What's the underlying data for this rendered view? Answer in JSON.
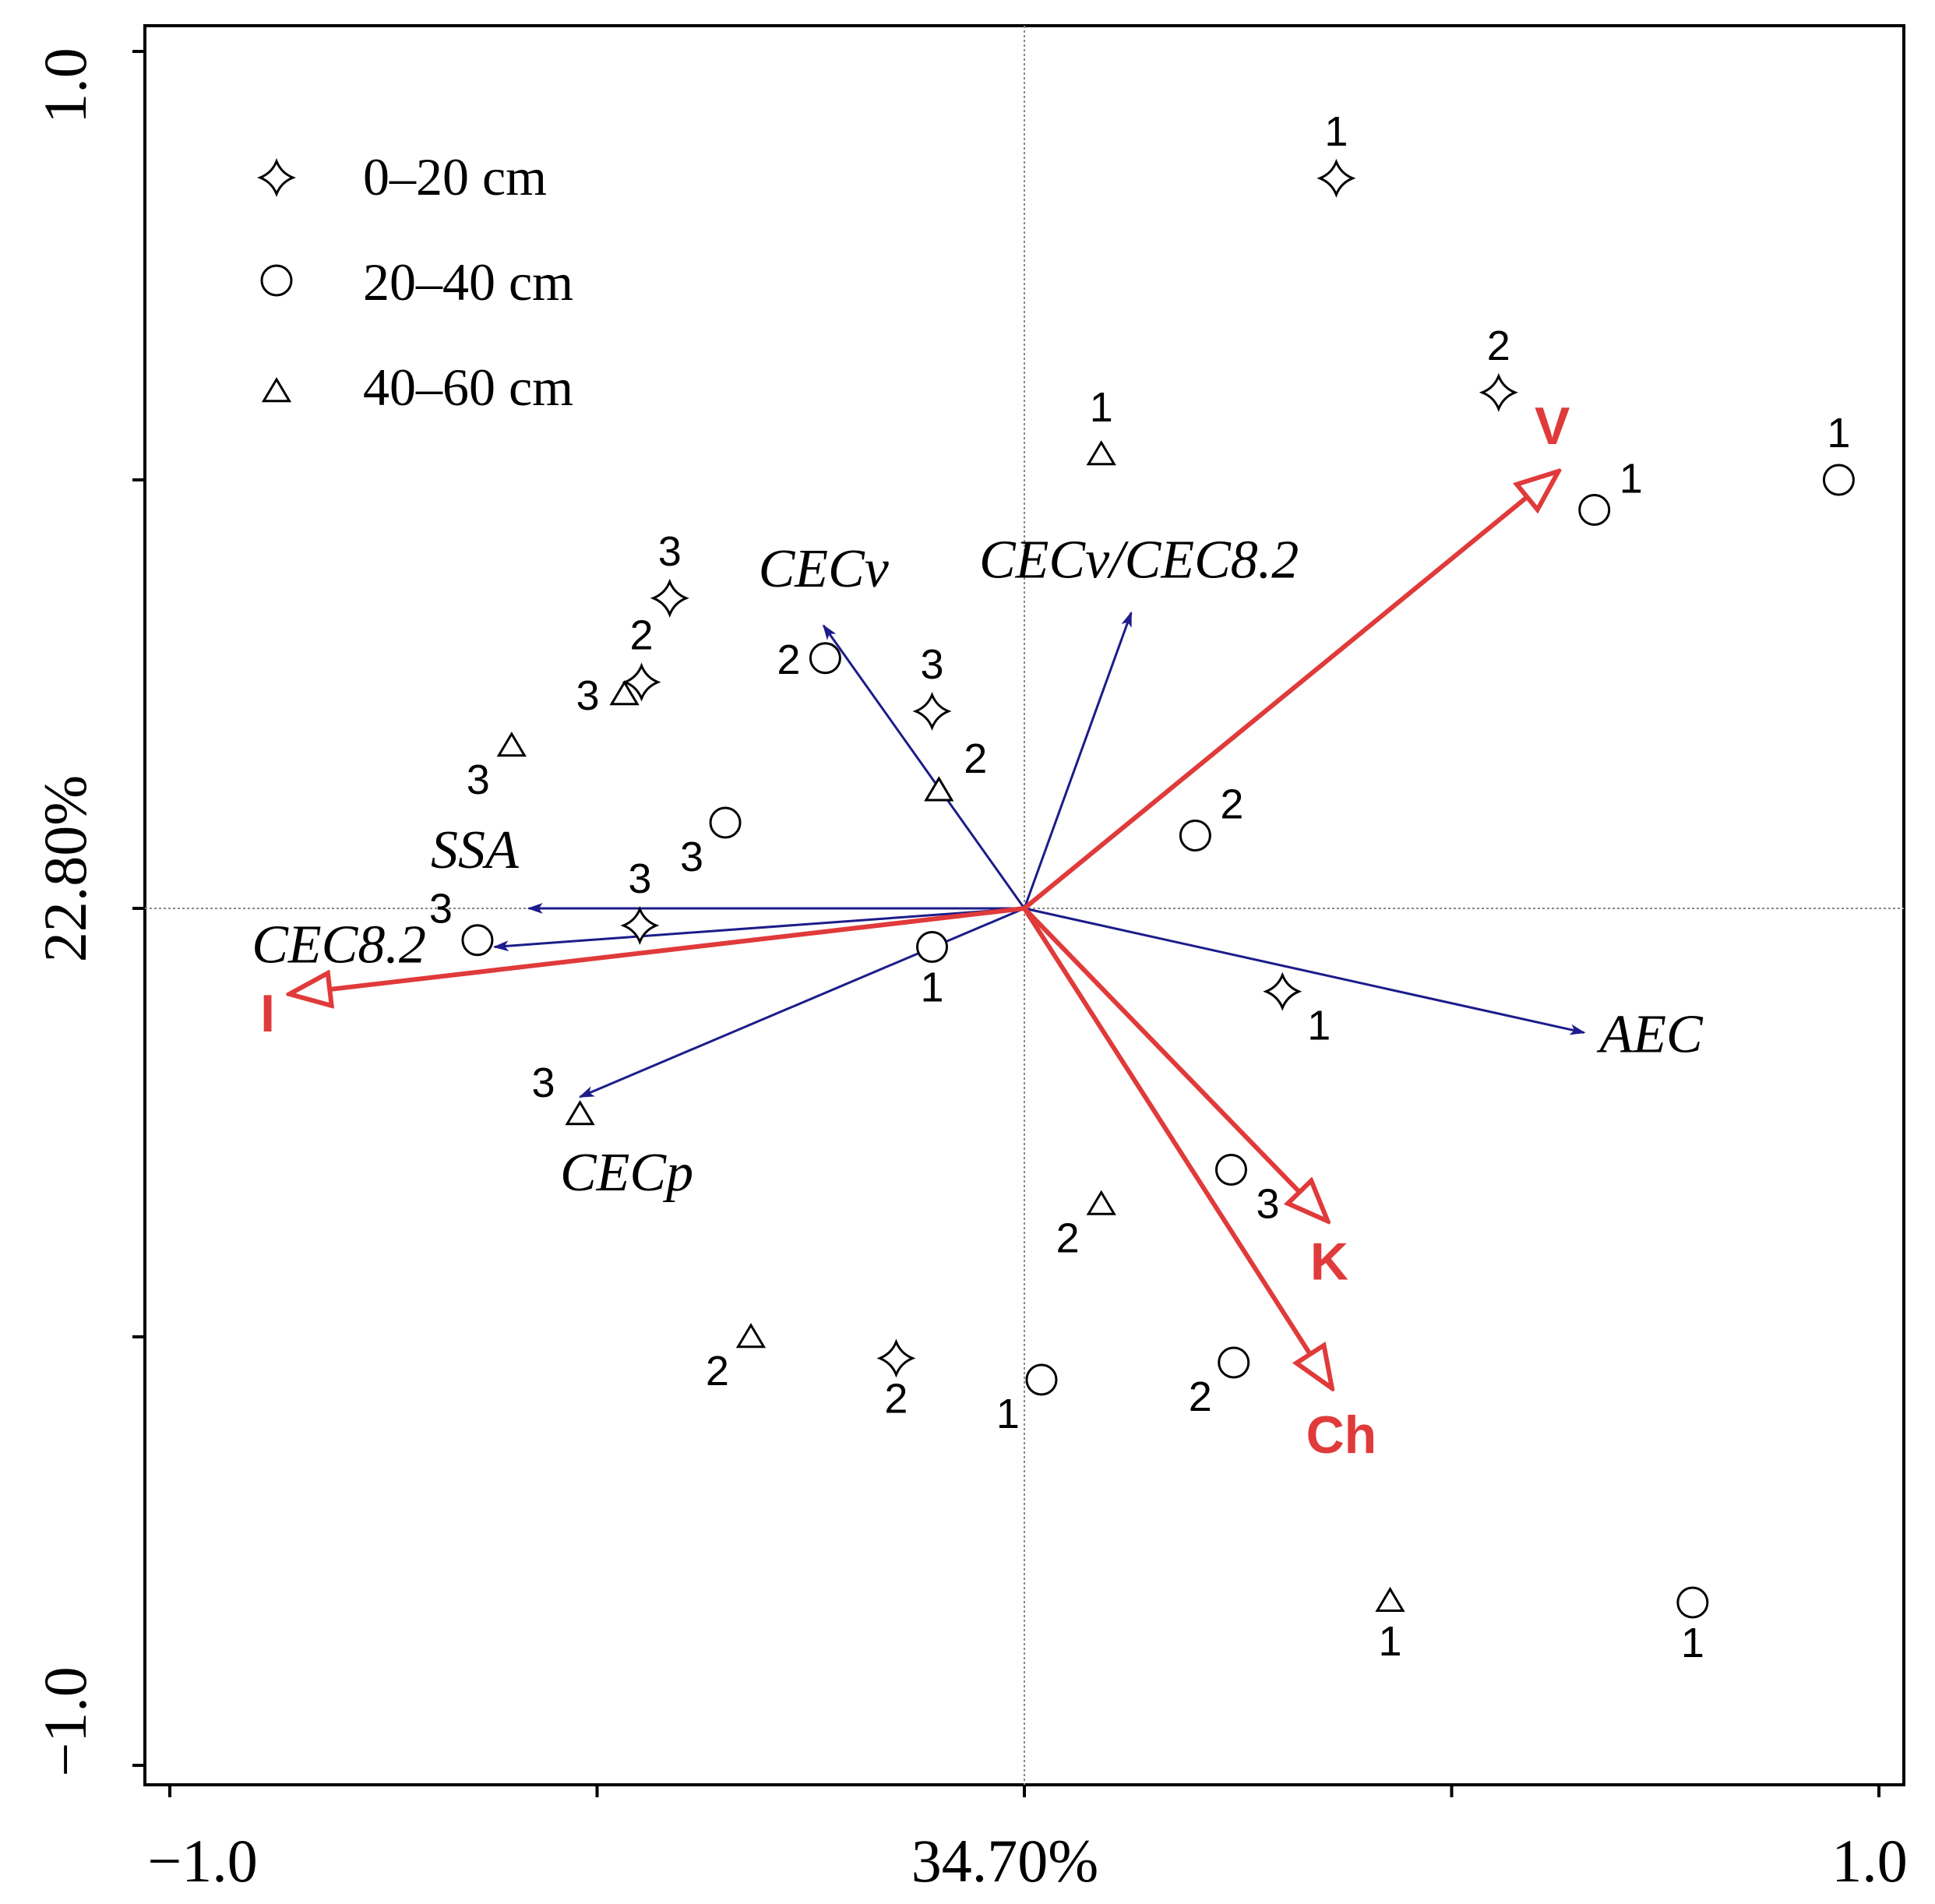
{
  "chart_data": {
    "type": "scatter",
    "subtype": "biplot",
    "xlabel": "34.70%",
    "ylabel": "22.80%",
    "xlim": [
      -1.0,
      1.0
    ],
    "ylim": [
      -1.0,
      1.0
    ],
    "x_tick_labels": [
      "−1.0",
      "1.0"
    ],
    "y_tick_labels": [
      "−1.0",
      "1.0"
    ],
    "legend": {
      "placement": "top-left",
      "entries": [
        {
          "marker": "star",
          "label": "0–20 cm"
        },
        {
          "marker": "circle",
          "label": "20–40 cm"
        },
        {
          "marker": "triangle",
          "label": "40–60 cm"
        }
      ]
    },
    "variable_vectors": [
      {
        "name": "SSA",
        "x": -0.58,
        "y": 0.0,
        "color": "#1c1c8a"
      },
      {
        "name": "CEC8.2",
        "x": -0.62,
        "y": -0.045,
        "color": "#1c1c8a"
      },
      {
        "name": "CECp",
        "x": -0.52,
        "y": -0.22,
        "color": "#1c1c8a"
      },
      {
        "name": "CECv",
        "x": -0.235,
        "y": 0.33,
        "color": "#1c1c8a"
      },
      {
        "name": "CECv/CEC8.2",
        "x": 0.125,
        "y": 0.345,
        "color": "#1c1c8a"
      },
      {
        "name": "AEC",
        "x": 0.655,
        "y": -0.145,
        "color": "#1c1c8a"
      }
    ],
    "environment_vectors": [
      {
        "name": "V",
        "x": 0.625,
        "y": 0.51,
        "color": "#e03a3a"
      },
      {
        "name": "I",
        "x": -0.86,
        "y": -0.1,
        "color": "#e03a3a"
      },
      {
        "name": "K",
        "x": 0.355,
        "y": -0.365,
        "color": "#e03a3a"
      },
      {
        "name": "Ch",
        "x": 0.36,
        "y": -0.56,
        "color": "#e03a3a"
      }
    ],
    "series": [
      {
        "name": "0–20 cm",
        "marker": "star",
        "points": [
          {
            "x": 0.365,
            "y": 0.852,
            "label": "1",
            "label_pos": "above"
          },
          {
            "x": 0.555,
            "y": 0.602,
            "label": "2",
            "label_pos": "above"
          },
          {
            "x": -0.415,
            "y": 0.362,
            "label": "3",
            "label_pos": "above"
          },
          {
            "x": -0.448,
            "y": 0.264,
            "label": "2",
            "label_pos": "above"
          },
          {
            "x": -0.108,
            "y": 0.23,
            "label": "3",
            "label_pos": "above"
          },
          {
            "x": -0.45,
            "y": -0.02,
            "label": "3",
            "label_pos": "above"
          },
          {
            "x": 0.302,
            "y": -0.097,
            "label": "1",
            "label_pos": "below-right"
          },
          {
            "x": -0.15,
            "y": -0.525,
            "label": "2",
            "label_pos": "below"
          }
        ]
      },
      {
        "name": "20–40 cm",
        "marker": "circle",
        "points": [
          {
            "x": 0.953,
            "y": 0.5,
            "label": "1",
            "label_pos": "above"
          },
          {
            "x": 0.667,
            "y": 0.465,
            "label": "1",
            "label_pos": "above-right"
          },
          {
            "x": -0.233,
            "y": 0.292,
            "label": "2",
            "label_pos": "left"
          },
          {
            "x": -0.35,
            "y": 0.1,
            "label": "3",
            "label_pos": "below-left"
          },
          {
            "x": 0.2,
            "y": 0.085,
            "label": "2",
            "label_pos": "above-right"
          },
          {
            "x": -0.64,
            "y": -0.037,
            "label": "3",
            "label_pos": "above-left"
          },
          {
            "x": -0.108,
            "y": -0.045,
            "label": "1",
            "label_pos": "below"
          },
          {
            "x": 0.242,
            "y": -0.305,
            "label": "3",
            "label_pos": "below-right"
          },
          {
            "x": 0.02,
            "y": -0.55,
            "label": "1",
            "label_pos": "below-left"
          },
          {
            "x": 0.245,
            "y": -0.53,
            "label": "2",
            "label_pos": "below-left"
          },
          {
            "x": 0.782,
            "y": -0.81,
            "label": "1",
            "label_pos": "below"
          }
        ]
      },
      {
        "name": "40–60 cm",
        "marker": "triangle",
        "points": [
          {
            "x": 0.09,
            "y": 0.53,
            "label": "1",
            "label_pos": "above"
          },
          {
            "x": -0.468,
            "y": 0.25,
            "label": "3",
            "label_pos": "left"
          },
          {
            "x": -0.6,
            "y": 0.19,
            "label": "3",
            "label_pos": "below-left"
          },
          {
            "x": -0.1,
            "y": 0.138,
            "label": "2",
            "label_pos": "above-right"
          },
          {
            "x": -0.52,
            "y": -0.24,
            "label": "3",
            "label_pos": "above-left"
          },
          {
            "x": 0.09,
            "y": -0.345,
            "label": "2",
            "label_pos": "below-left"
          },
          {
            "x": -0.32,
            "y": -0.5,
            "label": "2",
            "label_pos": "below-left"
          },
          {
            "x": 0.428,
            "y": -0.808,
            "label": "1",
            "label_pos": "below"
          }
        ]
      }
    ]
  }
}
